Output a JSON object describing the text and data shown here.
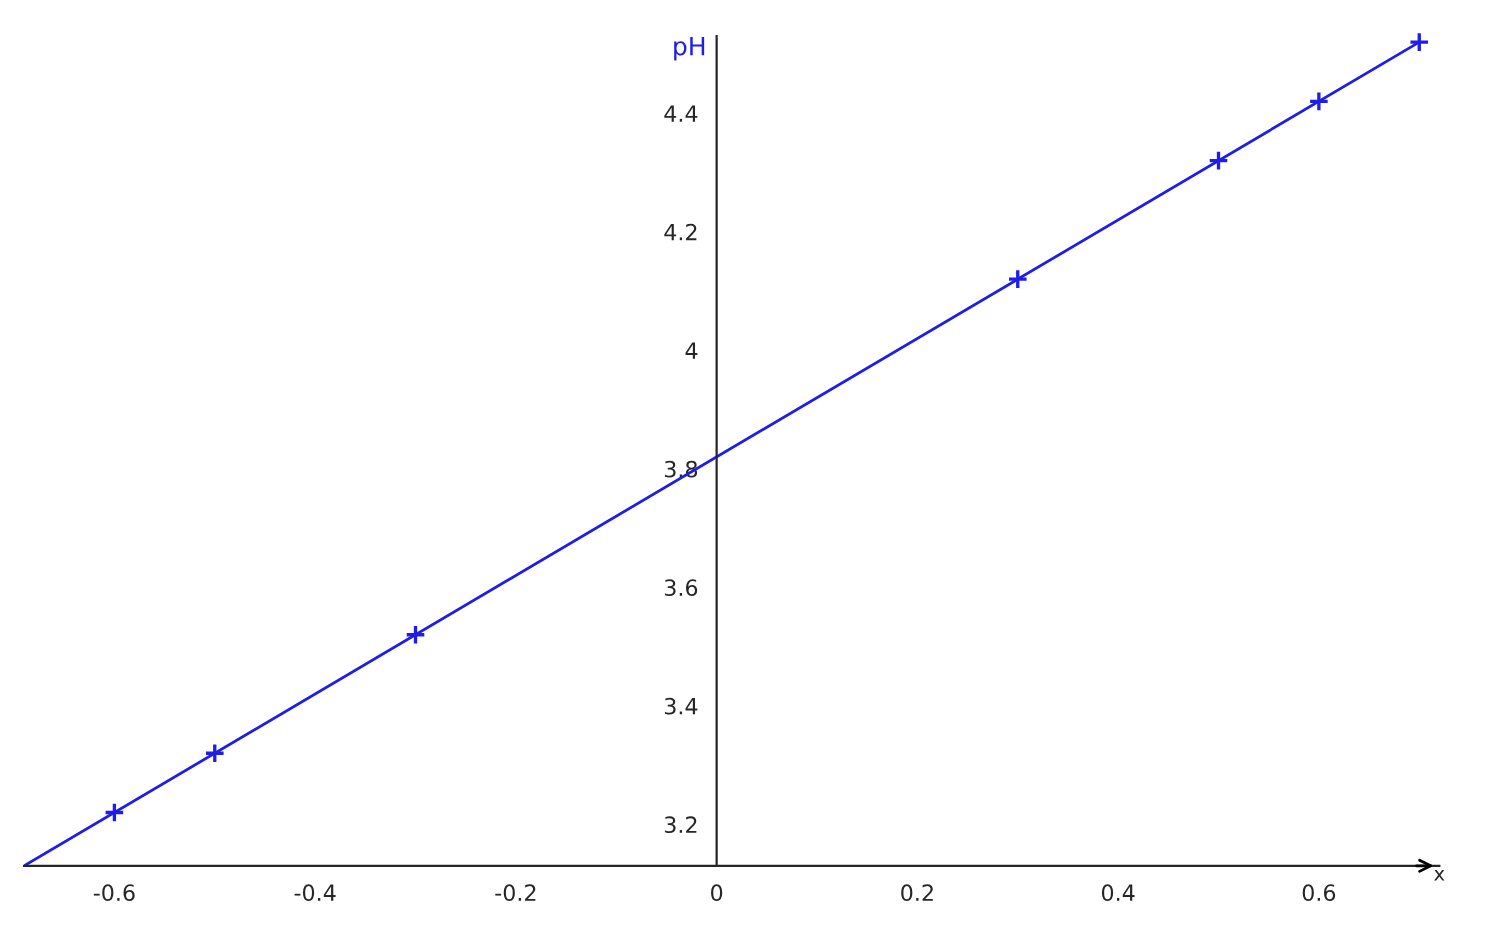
{
  "chart_data": {
    "type": "line",
    "xlabel": "x",
    "ylabel": "pH",
    "series": [
      {
        "color": "#1e1ee6",
        "marker": "none",
        "x": [
          -0.69,
          0.7
        ],
        "values": [
          3.13,
          4.52
        ]
      },
      {
        "type": "scatter",
        "color": "#1e1ee6",
        "marker": "cross",
        "x": [
          -0.6,
          -0.5,
          -0.3,
          0.3,
          0.5,
          0.6,
          0.7
        ],
        "values": [
          3.22,
          3.32,
          3.52,
          4.12,
          4.32,
          4.42,
          4.52
        ]
      }
    ],
    "xlim": [
      -0.69,
      0.72
    ],
    "ylim": [
      3.13,
      4.53
    ],
    "xticks": [
      -0.6,
      -0.4,
      -0.2,
      0,
      0.2,
      0.4,
      0.6
    ],
    "yticks": [
      3.2,
      3.4,
      3.6,
      3.8,
      4,
      4.2,
      4.4
    ],
    "grid": false,
    "legend": false
  }
}
